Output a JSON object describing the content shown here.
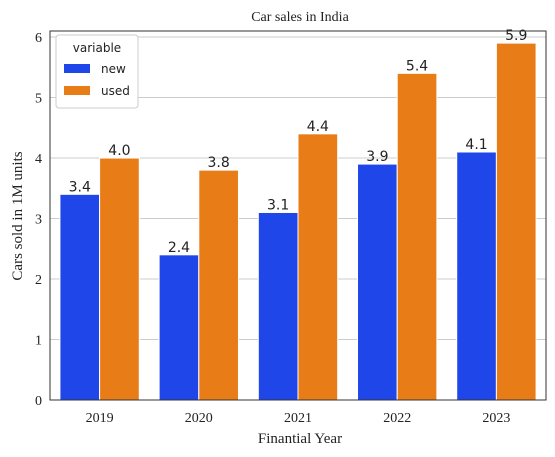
{
  "chart_data": {
    "type": "bar",
    "title": "Car sales in India",
    "xlabel": "Finantial Year",
    "ylabel": "Cars sold in 1M units",
    "categories": [
      "2019",
      "2020",
      "2021",
      "2022",
      "2023"
    ],
    "series": [
      {
        "name": "new",
        "values": [
          3.4,
          2.4,
          3.1,
          3.9,
          4.1
        ],
        "labels": [
          "3.4",
          "2.4",
          "3.1",
          "3.9",
          "4.1"
        ],
        "color": "#1f46e8"
      },
      {
        "name": "used",
        "values": [
          4.0,
          3.8,
          4.4,
          5.4,
          5.9
        ],
        "labels": [
          "4.0",
          "3.8",
          "4.4",
          "5.4",
          "5.9"
        ],
        "color": "#e87c17"
      }
    ],
    "ylim": [
      0,
      6.1
    ],
    "yticks": [
      "0",
      "1",
      "2",
      "3",
      "4",
      "5",
      "6"
    ],
    "grid": "horizontal",
    "legend": {
      "title": "variable",
      "placement": "top-left"
    }
  }
}
